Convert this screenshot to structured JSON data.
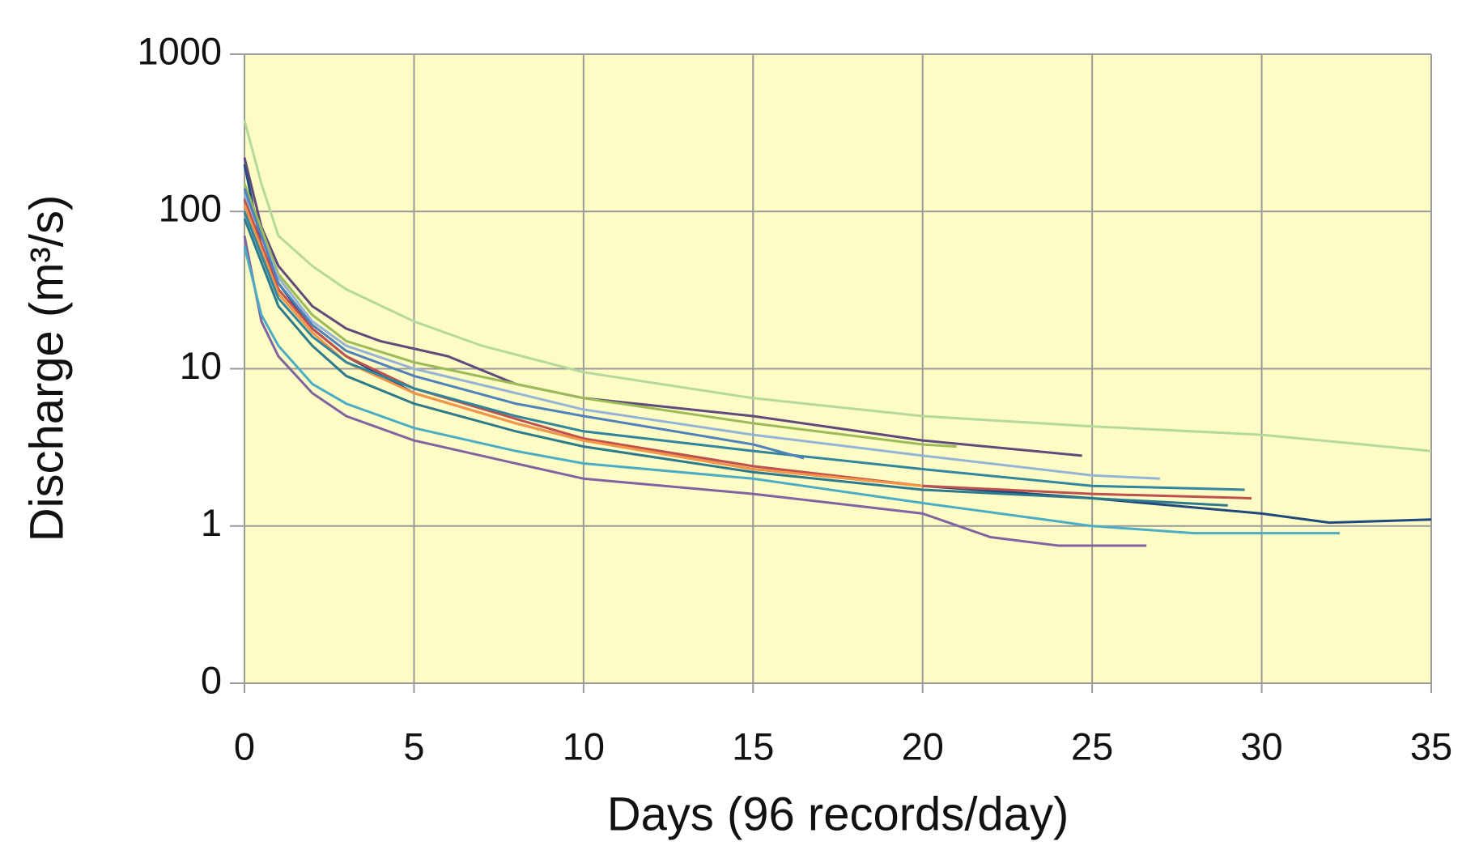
{
  "chart_data": {
    "type": "line",
    "x_label": "Days (96 records/day)",
    "y_label": "Discharge (m³/s)",
    "xlim": [
      0,
      35
    ],
    "xticks": [
      0,
      5,
      10,
      15,
      20,
      25,
      30,
      35
    ],
    "ylim": [
      0.1,
      1000
    ],
    "yticks": [
      {
        "value": 0.1,
        "label": "0"
      },
      1,
      10,
      100,
      1000
    ],
    "log_y": true,
    "grid": true,
    "plot_background": "#fdfcc4",
    "series": [
      {
        "color": "#b5d99c",
        "x": [
          0,
          0.5,
          1,
          2,
          3,
          5,
          7,
          10,
          15,
          20,
          25,
          30,
          35
        ],
        "values": [
          380,
          150,
          70,
          45,
          32,
          20,
          14,
          9.5,
          6.5,
          5,
          4.3,
          3.8,
          3
        ]
      },
      {
        "color": "#1f497d",
        "x": [
          0,
          0.5,
          1,
          2,
          3,
          5,
          8,
          10,
          15,
          20,
          25,
          30,
          32,
          35
        ],
        "values": [
          200,
          60,
          35,
          18,
          12,
          7,
          4.5,
          3.5,
          2.3,
          1.8,
          1.5,
          1.2,
          1.05,
          1.1
        ]
      },
      {
        "color": "#604a7b",
        "x": [
          0,
          0.5,
          1,
          2,
          3,
          4,
          6,
          8,
          10,
          15,
          20,
          24.7
        ],
        "values": [
          220,
          80,
          45,
          25,
          18,
          15,
          12,
          8,
          6.5,
          5,
          3.5,
          2.8
        ]
      },
      {
        "color": "#8064a2",
        "x": [
          0,
          0.5,
          1,
          2,
          3,
          5,
          8,
          10,
          15,
          20,
          22,
          24,
          26.6
        ],
        "values": [
          70,
          20,
          12,
          7,
          5,
          3.5,
          2.5,
          2,
          1.6,
          1.2,
          0.85,
          0.75,
          0.75
        ]
      },
      {
        "color": "#4bacc6",
        "x": [
          0,
          0.5,
          1,
          2,
          3,
          5,
          8,
          10,
          15,
          20,
          25,
          28,
          32.3
        ],
        "values": [
          60,
          22,
          14,
          8,
          6,
          4.2,
          3,
          2.5,
          2,
          1.4,
          1,
          0.9,
          0.9
        ]
      },
      {
        "color": "#c0504d",
        "x": [
          0,
          1,
          2,
          3,
          5,
          8,
          10,
          15,
          20,
          25,
          29.7
        ],
        "values": [
          120,
          32,
          18,
          12,
          7.5,
          4.8,
          3.6,
          2.4,
          1.8,
          1.6,
          1.5
        ]
      },
      {
        "color": "#f79646",
        "x": [
          0,
          1,
          2,
          3,
          5,
          8,
          10,
          15,
          20
        ],
        "values": [
          110,
          30,
          17,
          11,
          7,
          4.5,
          3.5,
          2.3,
          1.8
        ]
      },
      {
        "color": "#9bbb59",
        "x": [
          0,
          1,
          2,
          3,
          5,
          8,
          10,
          15,
          20,
          21
        ],
        "values": [
          150,
          40,
          22,
          15,
          11,
          8,
          6.5,
          4.5,
          3.3,
          3.2
        ]
      },
      {
        "color": "#95b3d7",
        "x": [
          0,
          1,
          2,
          3,
          5,
          8,
          10,
          15,
          20,
          25,
          27
        ],
        "values": [
          130,
          38,
          20,
          14,
          10,
          7,
          5.5,
          3.8,
          2.8,
          2.1,
          2
        ]
      },
      {
        "color": "#31859c",
        "x": [
          0,
          1,
          2,
          3,
          5,
          8,
          10,
          15,
          20,
          25,
          29.5
        ],
        "values": [
          100,
          28,
          16,
          11,
          7.5,
          5,
          4,
          3,
          2.3,
          1.8,
          1.7
        ]
      },
      {
        "color": "#4f81bd",
        "x": [
          0,
          1,
          2,
          3,
          5,
          8,
          10,
          15,
          16.5
        ],
        "values": [
          140,
          35,
          19,
          13,
          9,
          6,
          5,
          3.3,
          2.7
        ]
      },
      {
        "color": "#2c7a8c",
        "x": [
          0,
          1,
          2,
          3,
          5,
          8,
          10,
          15,
          20,
          25,
          29
        ],
        "values": [
          90,
          25,
          14,
          9,
          6,
          4,
          3.2,
          2.2,
          1.7,
          1.5,
          1.35
        ]
      }
    ]
  }
}
